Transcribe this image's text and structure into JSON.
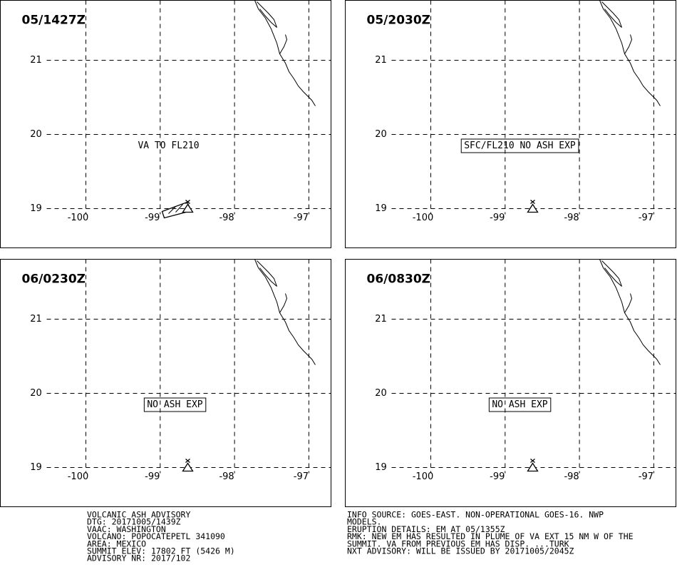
{
  "panels": [
    {
      "time": "05/1427Z",
      "annotation": "VA TO FL210",
      "boxed": false,
      "ash_area": true
    },
    {
      "time": "05/2030Z",
      "annotation": "SFC/FL210 NO ASH EXP",
      "boxed": true,
      "ash_area": false
    },
    {
      "time": "06/0230Z",
      "annotation": "NO ASH EXP",
      "boxed": true,
      "ash_area": false
    },
    {
      "time": "06/0830Z",
      "annotation": "NO ASH EXP",
      "boxed": true,
      "ash_area": false
    }
  ],
  "map": {
    "longitudes": [
      -100,
      -99,
      -98,
      -97
    ],
    "latitudes": [
      21,
      20,
      19
    ]
  },
  "advisory_left": [
    "VOLCANIC ASH ADVISORY",
    "DTG: 20171005/1439Z",
    "VAAC: WASHINGTON",
    "VOLCANO: POPOCATEPETL 341090",
    "AREA: MEXICO",
    "SUMMIT ELEV: 17802 FT (5426 M)",
    "ADVISORY NR: 2017/102"
  ],
  "advisory_right": [
    "INFO SOURCE: GOES-EAST. NON-OPERATIONAL GOES-16. NWP",
    "MODELS.",
    "ERUPTION DETAILS: EM AT 05/1355Z",
    "RMK: NEW EM HAS RESULTED IN PLUME OF VA EXT 15 NM W OF THE",
    "SUMMIT. VA FROM PREVIOUS EM HAS DISP. ...TURK",
    "NXT ADVISORY: WILL BE ISSUED BY 20171005/2045Z"
  ]
}
